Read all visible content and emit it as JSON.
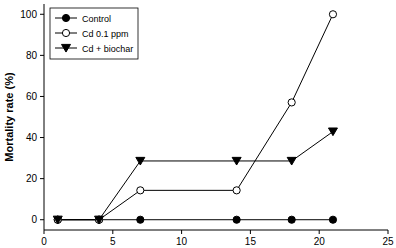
{
  "chart_data": {
    "type": "line",
    "y_label": "Mortality rate (%)",
    "x": [
      1,
      4,
      7,
      14,
      18,
      21
    ],
    "xlim": [
      0,
      25
    ],
    "xticks": [
      0,
      5,
      10,
      15,
      20,
      25
    ],
    "ylim": [
      -5,
      105
    ],
    "yticks": [
      0,
      20,
      40,
      60,
      80,
      100
    ],
    "legend": "top-left",
    "series": [
      {
        "name": "Control",
        "color": "#000000",
        "marker": "circle",
        "values": [
          0,
          0,
          0,
          0,
          0,
          0
        ]
      },
      {
        "name": "Cd 0.1 ppm",
        "color": "#000000",
        "marker": "open-circle",
        "values": [
          0,
          0,
          14.3,
          14.3,
          57.1,
          100
        ]
      },
      {
        "name": "Cd + biochar",
        "color": "#000000",
        "marker": "triangle-down",
        "values": [
          0,
          0,
          28.6,
          28.6,
          28.6,
          42.9
        ]
      }
    ]
  }
}
